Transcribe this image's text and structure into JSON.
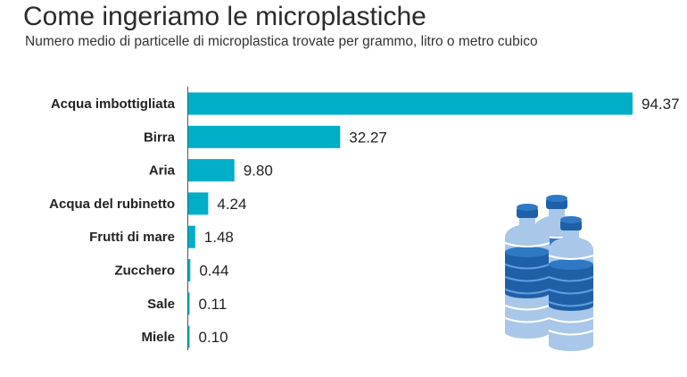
{
  "title": "Come ingeriamo le microplastiche",
  "subtitle": "Numero medio di particelle di microplastica trovate per grammo, litro o metro cubico",
  "colors": {
    "bar": "#00aec7",
    "axis": "#555555"
  },
  "illustration": {
    "icon": "water-bottles-icon"
  },
  "chart_data": {
    "type": "bar",
    "orientation": "horizontal",
    "categories": [
      "Acqua imbottigliata",
      "Birra",
      "Aria",
      "Acqua del rubinetto",
      "Frutti di mare",
      "Zucchero",
      "Sale",
      "Miele"
    ],
    "values": [
      94.37,
      32.27,
      9.8,
      4.24,
      1.48,
      0.44,
      0.11,
      0.1
    ],
    "value_labels": [
      "94.37",
      "32.27",
      "9.80",
      "4.24",
      "1.48",
      "0.44",
      "0.11",
      "0.10"
    ],
    "title": "Come ingeriamo le microplastiche",
    "subtitle": "Numero medio di particelle di microplastica trovate per grammo, litro o metro cubico",
    "xlim": [
      0,
      94.37
    ],
    "grid": false,
    "legend": "none"
  }
}
